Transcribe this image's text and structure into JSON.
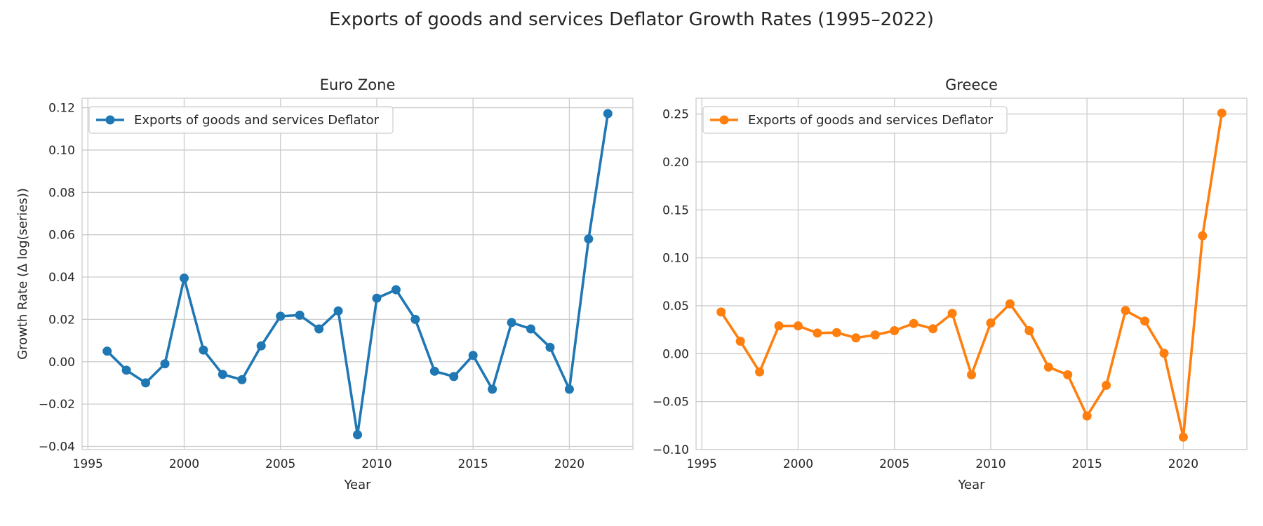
{
  "figure": {
    "title": "Exports of goods and services Deflator Growth Rates (1995–2022)"
  },
  "chart_data": [
    {
      "type": "line",
      "title": "Euro Zone",
      "xlabel": "Year",
      "ylabel": "Growth Rate (Δ log(series))",
      "xlim": [
        1994.7,
        2023.3
      ],
      "ylim": [
        -0.0415,
        0.1245
      ],
      "xticks": [
        1995,
        2000,
        2005,
        2010,
        2015,
        2020
      ],
      "xtick_labels": [
        "1995",
        "2000",
        "2005",
        "2010",
        "2015",
        "2020"
      ],
      "yticks": [
        -0.04,
        -0.02,
        0.0,
        0.02,
        0.04,
        0.06,
        0.08,
        0.1,
        0.12
      ],
      "ytick_labels": [
        "−0.04",
        "−0.02",
        "0.00",
        "0.02",
        "0.04",
        "0.06",
        "0.08",
        "0.10",
        "0.12"
      ],
      "grid": true,
      "legend_position": "upper left",
      "series": [
        {
          "name": "Exports of goods and services Deflator",
          "color": "#1f77b4",
          "marker": "circle",
          "x": [
            1996,
            1997,
            1998,
            1999,
            2000,
            2001,
            2002,
            2003,
            2004,
            2005,
            2006,
            2007,
            2008,
            2009,
            2010,
            2011,
            2012,
            2013,
            2014,
            2015,
            2016,
            2017,
            2018,
            2019,
            2020,
            2021,
            2022
          ],
          "y": [
            0.005,
            -0.004,
            -0.01,
            -0.001,
            0.0395,
            0.0055,
            -0.006,
            -0.0085,
            0.0075,
            0.0215,
            0.022,
            0.0155,
            0.024,
            -0.0345,
            0.03,
            0.034,
            0.02,
            -0.0045,
            -0.007,
            0.003,
            -0.013,
            0.0185,
            0.0155,
            0.0068,
            -0.013,
            0.058,
            0.1172
          ]
        }
      ]
    },
    {
      "type": "line",
      "title": "Greece",
      "xlabel": "Year",
      "ylabel": "",
      "xlim": [
        1994.7,
        2023.3
      ],
      "ylim": [
        -0.1,
        0.2665
      ],
      "xticks": [
        1995,
        2000,
        2005,
        2010,
        2015,
        2020
      ],
      "xtick_labels": [
        "1995",
        "2000",
        "2005",
        "2010",
        "2015",
        "2020"
      ],
      "yticks": [
        -0.1,
        -0.05,
        0.0,
        0.05,
        0.1,
        0.15,
        0.2,
        0.25
      ],
      "ytick_labels": [
        "−0.10",
        "−0.05",
        "0.00",
        "0.05",
        "0.10",
        "0.15",
        "0.20",
        "0.25"
      ],
      "grid": true,
      "legend_position": "upper left",
      "series": [
        {
          "name": "Exports of goods and services Deflator",
          "color": "#ff7f0e",
          "marker": "circle",
          "x": [
            1996,
            1997,
            1998,
            1999,
            2000,
            2001,
            2002,
            2003,
            2004,
            2005,
            2006,
            2007,
            2008,
            2009,
            2010,
            2011,
            2012,
            2013,
            2014,
            2015,
            2016,
            2017,
            2018,
            2019,
            2020,
            2021,
            2022
          ],
          "y": [
            0.0435,
            0.013,
            -0.019,
            0.029,
            0.029,
            0.0215,
            0.022,
            0.0165,
            0.0195,
            0.024,
            0.0315,
            0.026,
            0.042,
            -0.022,
            0.032,
            0.052,
            0.024,
            -0.014,
            -0.022,
            -0.065,
            -0.033,
            0.045,
            0.034,
            0.0005,
            -0.087,
            0.123,
            0.251
          ]
        }
      ]
    }
  ]
}
